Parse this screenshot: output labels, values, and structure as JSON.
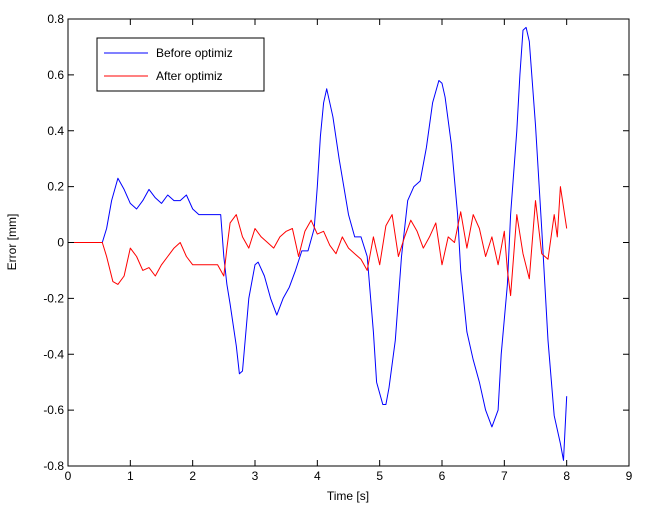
{
  "chart_data": {
    "type": "line",
    "xlabel": "Time [s]",
    "ylabel": "Error [mm]",
    "xlim": [
      0,
      9
    ],
    "ylim": [
      -0.8,
      0.8
    ],
    "xticks": [
      0,
      1,
      2,
      3,
      4,
      5,
      6,
      7,
      8,
      9
    ],
    "xtick_labels": [
      "0",
      "1",
      "2",
      "3",
      "4",
      "5",
      "6",
      "7",
      "8",
      "9"
    ],
    "yticks": [
      0.8,
      0.6,
      0.4,
      0.2,
      0,
      -0.2,
      -0.4,
      -0.6,
      -0.8
    ],
    "ytick_labels": [
      "0.8",
      "0.6",
      "0.4",
      "0.2",
      "0",
      "-0.2",
      "-0.4",
      "-0.6",
      "-0.8"
    ],
    "grid": false,
    "legend_position": "top-left",
    "series": [
      {
        "name": "Before optimiz",
        "color": "#0000ff",
        "x": [
          0,
          0.55,
          0.62,
          0.7,
          0.8,
          0.9,
          1.0,
          1.1,
          1.2,
          1.3,
          1.4,
          1.5,
          1.6,
          1.7,
          1.8,
          1.9,
          2.0,
          2.1,
          2.2,
          2.35,
          2.45,
          2.5,
          2.55,
          2.6,
          2.7,
          2.75,
          2.8,
          2.9,
          3.0,
          3.05,
          3.15,
          3.25,
          3.35,
          3.45,
          3.55,
          3.65,
          3.75,
          3.85,
          3.95,
          4.0,
          4.05,
          4.1,
          4.15,
          4.25,
          4.35,
          4.5,
          4.6,
          4.7,
          4.8,
          4.9,
          4.95,
          5.05,
          5.1,
          5.15,
          5.25,
          5.35,
          5.45,
          5.55,
          5.65,
          5.75,
          5.85,
          5.95,
          6.0,
          6.05,
          6.15,
          6.25,
          6.3,
          6.4,
          6.5,
          6.6,
          6.7,
          6.8,
          6.9,
          6.95,
          7.05,
          7.1,
          7.2,
          7.25,
          7.3,
          7.35,
          7.4,
          7.5,
          7.6,
          7.7,
          7.8,
          7.9,
          7.95,
          8.0
        ],
        "y": [
          0,
          0,
          0.05,
          0.15,
          0.23,
          0.19,
          0.14,
          0.12,
          0.15,
          0.19,
          0.16,
          0.14,
          0.17,
          0.15,
          0.15,
          0.17,
          0.12,
          0.1,
          0.1,
          0.1,
          0.1,
          -0.05,
          -0.15,
          -0.22,
          -0.37,
          -0.47,
          -0.46,
          -0.2,
          -0.08,
          -0.07,
          -0.12,
          -0.2,
          -0.26,
          -0.2,
          -0.16,
          -0.1,
          -0.03,
          -0.03,
          0.05,
          0.2,
          0.38,
          0.5,
          0.55,
          0.45,
          0.3,
          0.1,
          0.02,
          0.02,
          -0.05,
          -0.32,
          -0.5,
          -0.58,
          -0.58,
          -0.52,
          -0.35,
          -0.05,
          0.15,
          0.2,
          0.22,
          0.34,
          0.5,
          0.58,
          0.57,
          0.52,
          0.35,
          0.1,
          -0.1,
          -0.32,
          -0.42,
          -0.5,
          -0.6,
          -0.66,
          -0.6,
          -0.4,
          -0.15,
          0.1,
          0.4,
          0.6,
          0.76,
          0.77,
          0.72,
          0.42,
          0.05,
          -0.35,
          -0.62,
          -0.72,
          -0.78,
          -0.55
        ]
      },
      {
        "name": "After optimiz",
        "color": "#ff0000",
        "x": [
          0,
          0.55,
          0.62,
          0.72,
          0.8,
          0.9,
          1.0,
          1.1,
          1.2,
          1.3,
          1.4,
          1.5,
          1.6,
          1.7,
          1.8,
          1.9,
          2.0,
          2.2,
          2.4,
          2.5,
          2.55,
          2.6,
          2.7,
          2.8,
          2.9,
          3.0,
          3.1,
          3.2,
          3.3,
          3.4,
          3.5,
          3.6,
          3.7,
          3.8,
          3.9,
          4.0,
          4.1,
          4.2,
          4.3,
          4.4,
          4.5,
          4.6,
          4.7,
          4.8,
          4.9,
          5.0,
          5.1,
          5.2,
          5.3,
          5.4,
          5.5,
          5.6,
          5.7,
          5.8,
          5.9,
          6.0,
          6.1,
          6.2,
          6.3,
          6.4,
          6.5,
          6.6,
          6.7,
          6.8,
          6.9,
          7.0,
          7.05,
          7.1,
          7.2,
          7.3,
          7.4,
          7.5,
          7.6,
          7.7,
          7.8,
          7.85,
          7.9,
          8.0
        ],
        "y": [
          0,
          0,
          -0.05,
          -0.14,
          -0.15,
          -0.12,
          -0.02,
          -0.05,
          -0.1,
          -0.09,
          -0.12,
          -0.08,
          -0.05,
          -0.02,
          0,
          -0.05,
          -0.08,
          -0.08,
          -0.08,
          -0.12,
          -0.02,
          0.07,
          0.1,
          0.02,
          -0.02,
          0.05,
          0.02,
          0,
          -0.02,
          0.02,
          0.04,
          0.05,
          -0.05,
          0.04,
          0.08,
          0.03,
          0.04,
          -0.01,
          -0.04,
          0.02,
          -0.02,
          -0.04,
          -0.06,
          -0.1,
          0.02,
          -0.08,
          0.06,
          0.1,
          -0.05,
          0.02,
          0.08,
          0.04,
          -0.02,
          0.02,
          0.07,
          -0.08,
          0.02,
          0,
          0.11,
          -0.02,
          0.1,
          0.05,
          -0.05,
          0.02,
          -0.08,
          0.04,
          -0.1,
          -0.19,
          0.1,
          -0.04,
          -0.13,
          0.15,
          -0.04,
          -0.06,
          0.1,
          0.02,
          0.2,
          0.05
        ]
      }
    ]
  }
}
